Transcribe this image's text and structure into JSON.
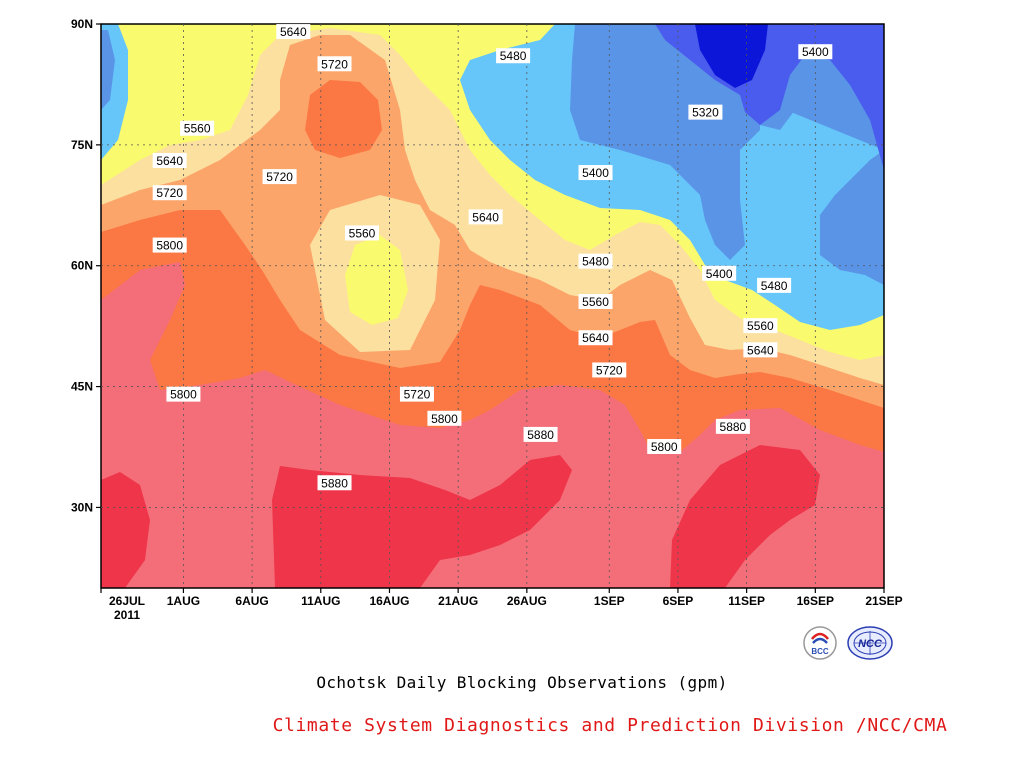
{
  "chart_data": {
    "type": "heatmap",
    "title": "Ochotsk Daily Blocking Observations (gpm)",
    "credit": "Climate System Diagnostics and Prediction Division /NCC/CMA",
    "x_ticks": [
      "26JUL",
      "1AUG",
      "6AUG",
      "11AUG",
      "16AUG",
      "21AUG",
      "26AUG",
      "1SEP",
      "6SEP",
      "11SEP",
      "16SEP",
      "21SEP"
    ],
    "x_tick_dates": [
      "2011-07-26",
      "2011-08-01",
      "2011-08-06",
      "2011-08-11",
      "2011-08-16",
      "2011-08-21",
      "2011-08-26",
      "2011-09-01",
      "2011-09-06",
      "2011-09-11",
      "2011-09-16",
      "2011-09-21"
    ],
    "x_year_label": "2011",
    "xlim": [
      "2011-07-26",
      "2011-09-21"
    ],
    "y_ticks": [
      "30N",
      "45N",
      "60N",
      "75N",
      "90N"
    ],
    "y_tick_values": [
      30,
      45,
      60,
      75,
      90
    ],
    "ylim": [
      20,
      90
    ],
    "contour_levels": [
      5320,
      5400,
      5480,
      5560,
      5640,
      5720,
      5800,
      5880
    ],
    "level_colors": {
      "below_5320": "#0b16d8",
      "5320-5400": "#4a5cee",
      "5400-5480": "#5a94e6",
      "5480-5560": "#66c6fa",
      "5560-5640": "#fafa6e",
      "5640-5720": "#fce0a0",
      "5720-5800": "#fca56a",
      "5800-5880": "#fb7744",
      "5880-5960": "#f46e7a",
      "above_5960": "#ef3549"
    },
    "contour_labels": [
      {
        "value": "5640",
        "date": "2011-08-09",
        "lat": 89
      },
      {
        "value": "5720",
        "date": "2011-08-12",
        "lat": 85
      },
      {
        "value": "5560",
        "date": "2011-08-02",
        "lat": 77
      },
      {
        "value": "5640",
        "date": "2011-07-31",
        "lat": 73
      },
      {
        "value": "5720",
        "date": "2011-08-08",
        "lat": 71
      },
      {
        "value": "5720",
        "date": "2011-07-31",
        "lat": 69
      },
      {
        "value": "5800",
        "date": "2011-07-31",
        "lat": 62.5
      },
      {
        "value": "5560",
        "date": "2011-08-14",
        "lat": 64
      },
      {
        "value": "5640",
        "date": "2011-08-23",
        "lat": 66
      },
      {
        "value": "5480",
        "date": "2011-08-25",
        "lat": 86
      },
      {
        "value": "5400",
        "date": "2011-08-31",
        "lat": 71.5
      },
      {
        "value": "5320",
        "date": "2011-09-08",
        "lat": 79
      },
      {
        "value": "5400",
        "date": "2011-09-16",
        "lat": 86.5
      },
      {
        "value": "5480",
        "date": "2011-08-31",
        "lat": 60.5
      },
      {
        "value": "5400",
        "date": "2011-09-09",
        "lat": 59
      },
      {
        "value": "5480",
        "date": "2011-09-13",
        "lat": 57.5
      },
      {
        "value": "5560",
        "date": "2011-08-31",
        "lat": 55.5
      },
      {
        "value": "5560",
        "date": "2011-09-12",
        "lat": 52.5
      },
      {
        "value": "5640",
        "date": "2011-08-31",
        "lat": 51
      },
      {
        "value": "5640",
        "date": "2011-09-12",
        "lat": 49.5
      },
      {
        "value": "5720",
        "date": "2011-09-01",
        "lat": 47
      },
      {
        "value": "5720",
        "date": "2011-08-18",
        "lat": 44
      },
      {
        "value": "5800",
        "date": "2011-08-01",
        "lat": 44
      },
      {
        "value": "5800",
        "date": "2011-08-20",
        "lat": 41
      },
      {
        "value": "5800",
        "date": "2011-09-05",
        "lat": 37.5
      },
      {
        "value": "5880",
        "date": "2011-09-10",
        "lat": 40
      },
      {
        "value": "5880",
        "date": "2011-08-27",
        "lat": 39
      },
      {
        "value": "5880",
        "date": "2011-08-12",
        "lat": 33
      }
    ]
  },
  "logos": {
    "bcc": "BCC",
    "ncc": "NCC"
  }
}
